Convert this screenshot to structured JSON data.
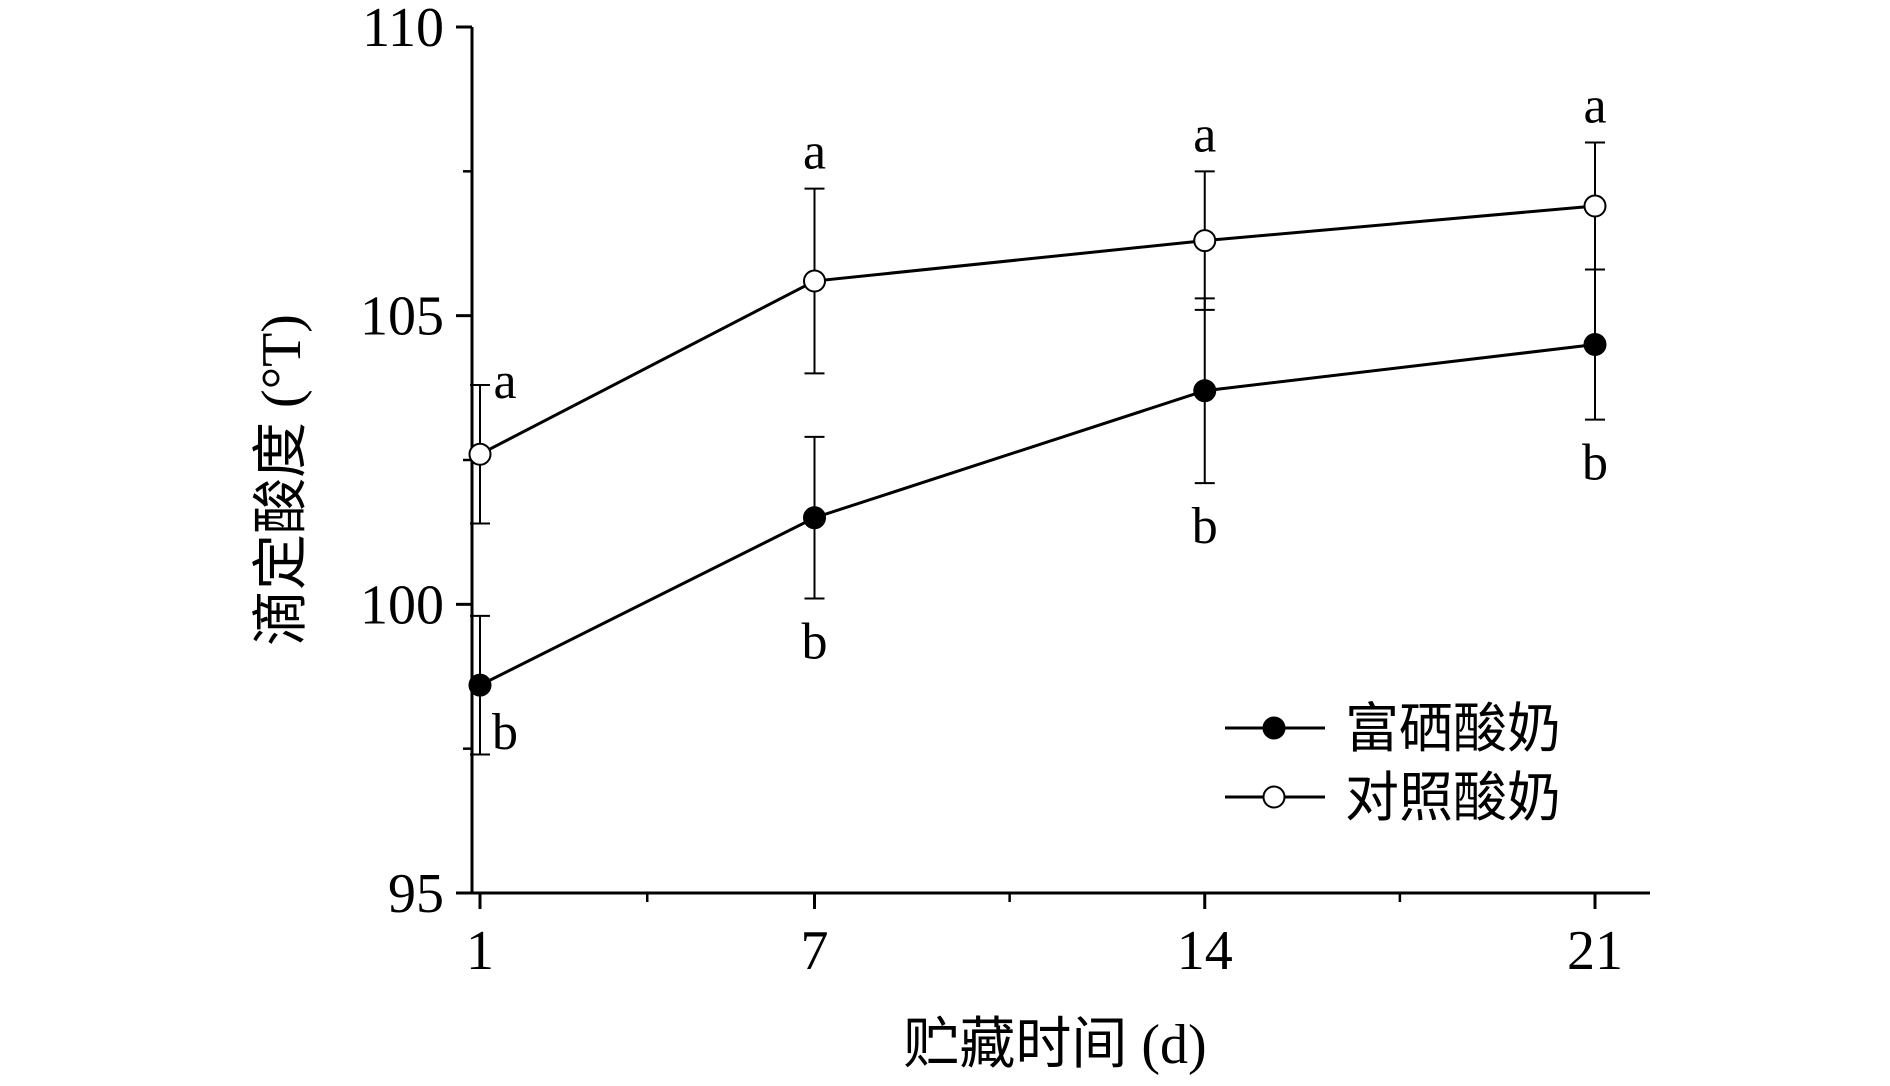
{
  "chart_data": {
    "type": "line",
    "xlabel": "贮藏时间 (d)",
    "ylabel": "滴定酸度 (°T)",
    "x": [
      1,
      7,
      14,
      21
    ],
    "x_tick_labels": [
      "1",
      "7",
      "14",
      "21"
    ],
    "y_tick_labels": [
      "95",
      "100",
      "105",
      "110"
    ],
    "y_ticks": [
      95,
      100,
      105,
      110
    ],
    "ylim": [
      95,
      110
    ],
    "grid": false,
    "legend_position": "bottom-right",
    "series": [
      {
        "name": "富硒酸奶",
        "marker": "filled-circle",
        "values": [
          98.6,
          101.5,
          103.7,
          104.5
        ],
        "errors": [
          1.2,
          1.4,
          1.6,
          1.3
        ],
        "significance": [
          "b",
          "b",
          "b",
          "b"
        ],
        "label_side": "below"
      },
      {
        "name": "对照酸奶",
        "marker": "open-circle",
        "values": [
          102.6,
          105.6,
          106.3,
          106.9
        ],
        "errors": [
          1.2,
          1.6,
          1.2,
          1.1
        ],
        "significance": [
          "a",
          "a",
          "a",
          "a"
        ],
        "label_side": "above"
      }
    ],
    "colors": {
      "line": "#000000",
      "filled_marker": "#000000",
      "open_marker_fill": "#ffffff"
    }
  }
}
